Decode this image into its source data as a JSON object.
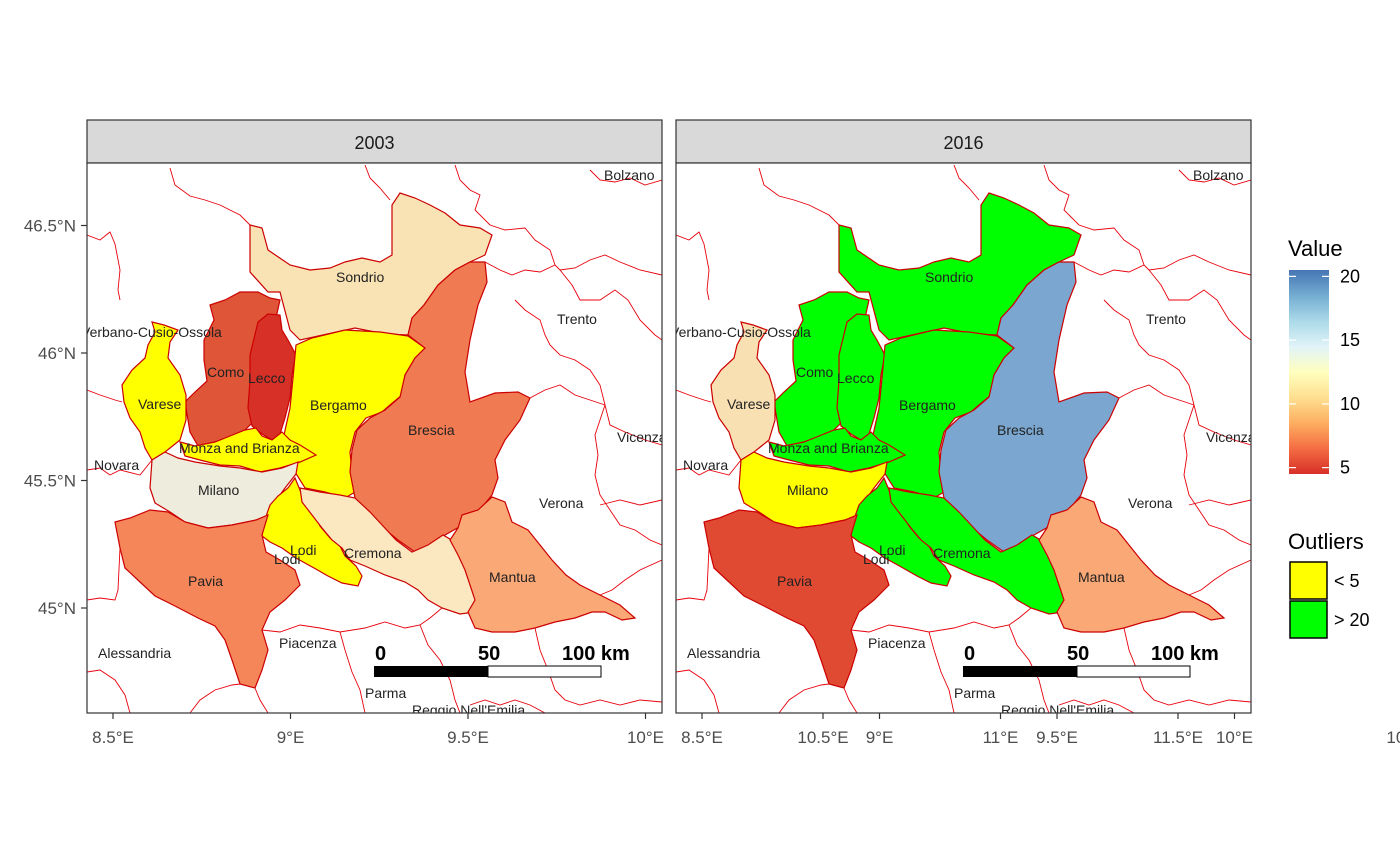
{
  "panels": [
    {
      "strip": "2003",
      "regions": {
        "Sondrio": "#f9e3b4",
        "Como": "#df5538",
        "Lecco": "#d73027",
        "Varese": "#ffff00",
        "Bergamo": "#ffff00",
        "Brescia": "#f07a52",
        "Monza and Brianza": "#ffff00",
        "Milano": "#eeecdc",
        "Lodi": "#ffff00",
        "Cremona": "#fbe7c0",
        "Pavia": "#f4865a",
        "Mantua": "#fba877"
      }
    },
    {
      "strip": "2016",
      "regions": {
        "Sondrio": "#00ff00",
        "Como": "#00ff00",
        "Lecco": "#00ff00",
        "Varese": "#f9e0b3",
        "Bergamo": "#00ff00",
        "Brescia": "#7aa6cf",
        "Monza and Brianza": "#00ff00",
        "Milano": "#ffff00",
        "Lodi": "#00ff00",
        "Cremona": "#00ff00",
        "Pavia": "#e04a33",
        "Mantua": "#fba877"
      }
    }
  ],
  "place_labels": {
    "Bolzano": "Bolzano",
    "Sondrio": "Sondrio",
    "Trento": "Trento",
    "Verbano": "Verbano-Cusio-Ossola",
    "Como": "Como",
    "Lecco": "Lecco",
    "Varese": "Varese",
    "Bergamo": "Bergamo",
    "Brescia": "Brescia",
    "Vicenza": "Vicenza",
    "Monza": "Monza and Brianza",
    "Novara": "Novara",
    "Milano": "Milano",
    "Verona": "Verona",
    "Lodi": "Lodi",
    "Lodi2": "Lodi",
    "Cremona": "Cremona",
    "Mantua": "Mantua",
    "Pavia": "Pavia",
    "Piacenza": "Piacenza",
    "Alessandria": "Alessandria",
    "Parma": "Parma",
    "Reggio": "Reggio Nell'Emilia"
  },
  "x_ticks": [
    "8.5°E",
    "9°E",
    "9.5°E",
    "10°E",
    "10.5°E",
    "11°E",
    "11.5°E"
  ],
  "y_ticks": [
    "46.5°N",
    "46°N",
    "45.5°N",
    "45°N"
  ],
  "scalebar": {
    "labels": [
      "0",
      "50",
      "100 km"
    ]
  },
  "legend": {
    "value_title": "Value",
    "value_ticks": [
      "20",
      "15",
      "10",
      "5"
    ],
    "colorbar_range": [
      4.5,
      20.5
    ],
    "colorbar_colors": [
      "#d73027",
      "#f46d43",
      "#fdae61",
      "#fee090",
      "#ffffbf",
      "#e0f3f8",
      "#abd9e9",
      "#74add1",
      "#4575b4"
    ],
    "outliers_title": "Outliers",
    "outliers": [
      {
        "label": "< 5",
        "color": "#ffff00"
      },
      {
        "label": "> 20",
        "color": "#00ff00"
      }
    ]
  }
}
